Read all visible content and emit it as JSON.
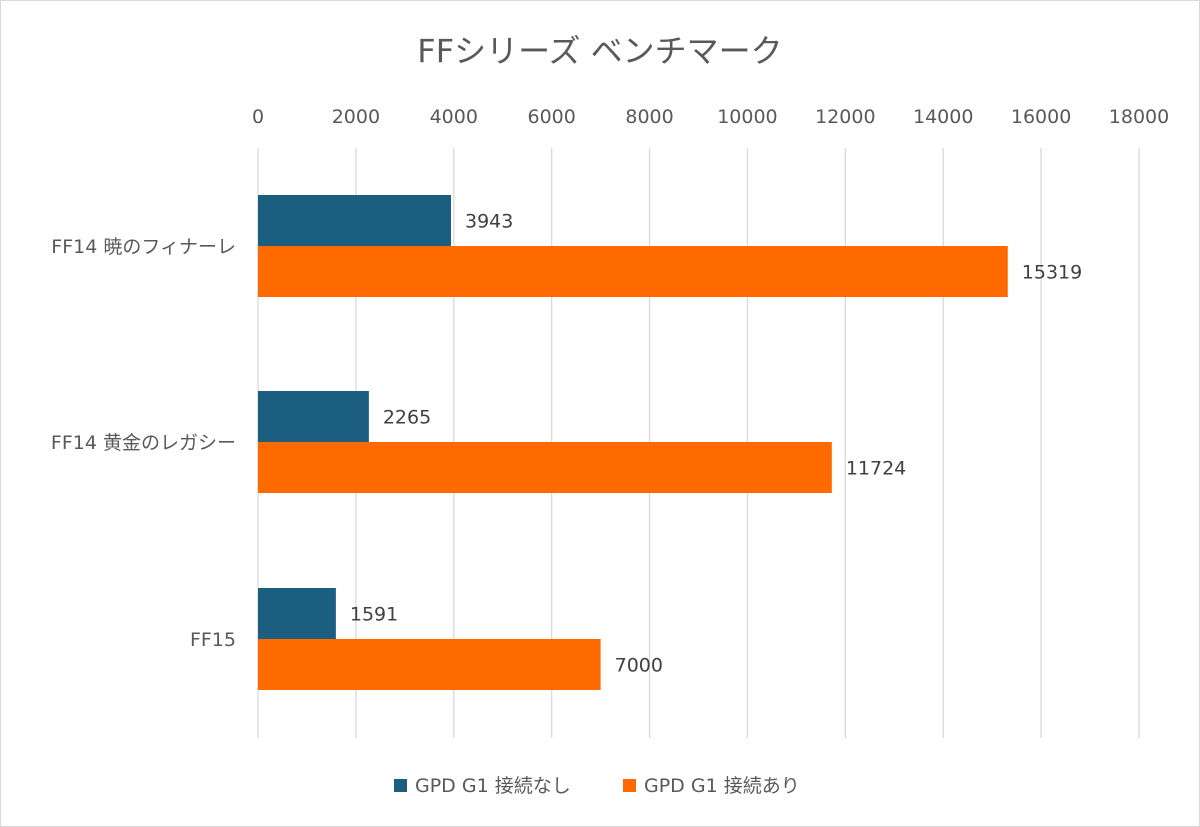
{
  "chart_data": {
    "type": "bar",
    "orientation": "horizontal",
    "title": "FFシリーズ ベンチマーク",
    "categories": [
      "FF14 暁のフィナーレ",
      "FF14 黄金のレガシー",
      "FF15"
    ],
    "series": [
      {
        "name": "GPD G1 接続なし",
        "color": "#1b5e80",
        "values": [
          3943,
          2265,
          1591
        ]
      },
      {
        "name": "GPD G1 接続あり",
        "color": "#ff6a00",
        "values": [
          15319,
          11724,
          7000
        ]
      }
    ],
    "xlim": [
      0,
      18000
    ],
    "xticks": [
      "0",
      "2000",
      "4000",
      "6000",
      "8000",
      "10000",
      "12000",
      "14000",
      "16000",
      "18000"
    ],
    "tick_step": 2000,
    "axis_position": "top",
    "grid": true,
    "data_labels": true,
    "legend": "bottom"
  }
}
